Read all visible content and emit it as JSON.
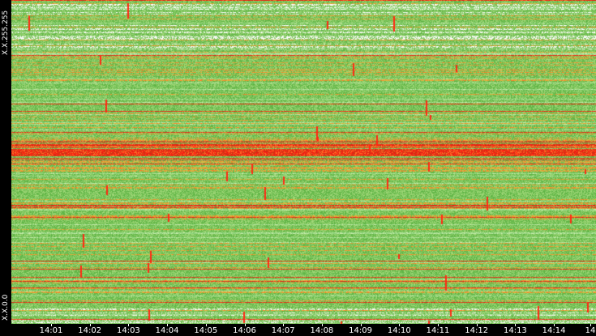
{
  "chart_data": {
    "type": "heatmap",
    "y_axis": {
      "top_label": "X.X.255.255",
      "bottom_label": "X.X.0.0"
    },
    "x_axis": {
      "tick_labels": [
        "14:01",
        "14:02",
        "14:03",
        "14:04",
        "14:05",
        "14:06",
        "14:07",
        "14:08",
        "14:09",
        "14:10",
        "14:11",
        "14:12",
        "14:13",
        "14:14",
        "14"
      ]
    },
    "colors": {
      "low": "#8bd27a",
      "mid": "#5fb84a",
      "warm": "#e8a23a",
      "high": "#ff2a14",
      "sparse": "#ffffff",
      "background": "#000000"
    }
  }
}
